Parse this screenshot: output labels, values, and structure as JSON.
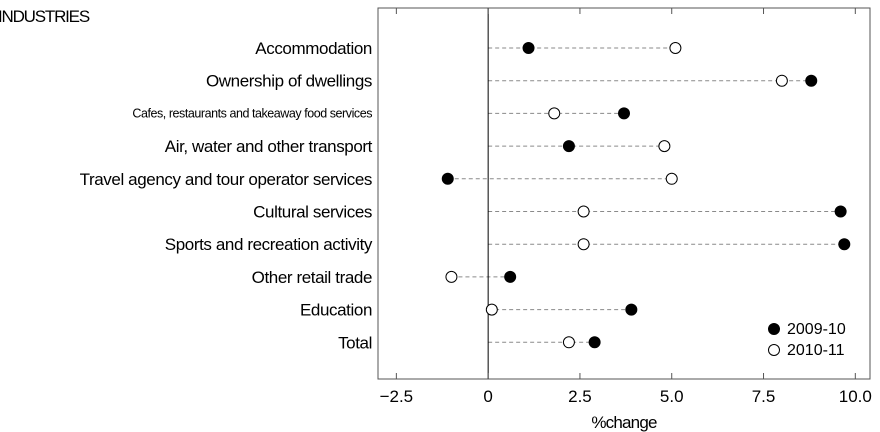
{
  "chart_data": {
    "type": "scatter",
    "title": "INDUSTRIES",
    "xlabel": "%change",
    "ylabel": "",
    "xlim": [
      -3.0,
      10.4
    ],
    "x_ticks": [
      -2.5,
      0,
      2.5,
      5.0,
      7.5,
      10.0
    ],
    "x_tick_labels": [
      "−2.5",
      "0",
      "2.5",
      "5.0",
      "7.5",
      "10.0"
    ],
    "grid": false,
    "zero_line": true,
    "legend_position": "bottom-right",
    "categories": [
      "Accommodation",
      "Ownership of dwellings",
      "Cafes, restaurants and takeaway food services",
      "Air, water and other transport",
      "Travel agency and tour operator services",
      "Cultural services",
      "Sports and recreation activity",
      "Other retail trade",
      "Education",
      "Total"
    ],
    "series": [
      {
        "name": "2009-10",
        "marker": "filled-circle",
        "color": "#000000",
        "values": [
          1.1,
          8.8,
          3.7,
          2.2,
          -1.1,
          9.6,
          9.7,
          0.6,
          3.9,
          2.9
        ]
      },
      {
        "name": "2010-11",
        "marker": "hollow-circle",
        "color": "#000000",
        "values": [
          5.1,
          8.0,
          1.8,
          4.8,
          5.0,
          2.6,
          2.6,
          -1.0,
          0.1,
          2.2
        ]
      }
    ]
  }
}
